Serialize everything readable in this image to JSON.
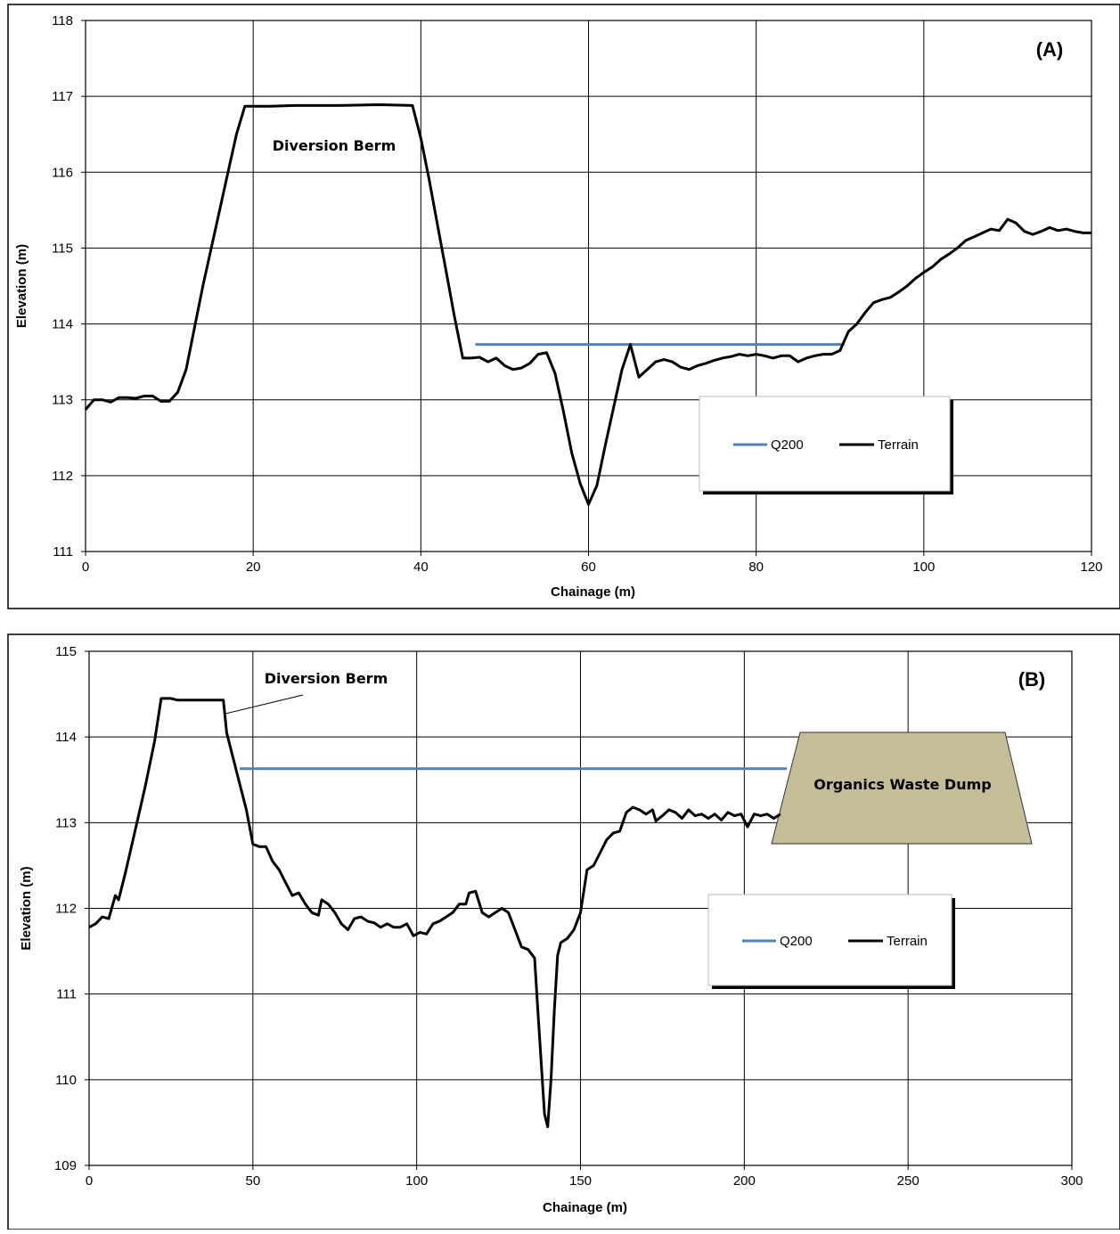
{
  "chart_data": [
    {
      "type": "line",
      "panel_label": "(A)",
      "xlabel": "Chainage (m)",
      "ylabel": "Elevation (m)",
      "xlim": [
        0,
        120
      ],
      "ylim": [
        111,
        118
      ],
      "xticks": [
        0,
        20,
        40,
        60,
        80,
        100,
        120
      ],
      "yticks": [
        111,
        112,
        113,
        114,
        115,
        116,
        117,
        118
      ],
      "grid": true,
      "legend_position": "lower-right",
      "annotations": [
        "Diversion Berm"
      ],
      "series": [
        {
          "name": "Q200",
          "color": "#4f81bd",
          "points": [
            [
              46.5,
              113.73
            ],
            [
              90.5,
              113.73
            ]
          ]
        },
        {
          "name": "Terrain",
          "color": "#000000",
          "points": [
            [
              0,
              112.87
            ],
            [
              1,
              113.0
            ],
            [
              2,
              113.0
            ],
            [
              3,
              112.97
            ],
            [
              4,
              113.03
            ],
            [
              5,
              113.03
            ],
            [
              6,
              113.02
            ],
            [
              7,
              113.05
            ],
            [
              8,
              113.05
            ],
            [
              9,
              112.98
            ],
            [
              10,
              112.98
            ],
            [
              11,
              113.1
            ],
            [
              12,
              113.4
            ],
            [
              13,
              113.95
            ],
            [
              14,
              114.5
            ],
            [
              15,
              115.0
            ],
            [
              16,
              115.5
            ],
            [
              17,
              116.0
            ],
            [
              18,
              116.5
            ],
            [
              19,
              116.87
            ],
            [
              22,
              116.87
            ],
            [
              25,
              116.88
            ],
            [
              30,
              116.88
            ],
            [
              35,
              116.89
            ],
            [
              39,
              116.88
            ],
            [
              40,
              116.45
            ],
            [
              41,
              115.9
            ],
            [
              42,
              115.3
            ],
            [
              43,
              114.7
            ],
            [
              44,
              114.1
            ],
            [
              45,
              113.55
            ],
            [
              46,
              113.55
            ],
            [
              47,
              113.56
            ],
            [
              48,
              113.5
            ],
            [
              49,
              113.55
            ],
            [
              50,
              113.45
            ],
            [
              51,
              113.4
            ],
            [
              52,
              113.42
            ],
            [
              53,
              113.48
            ],
            [
              54,
              113.6
            ],
            [
              55,
              113.62
            ],
            [
              56,
              113.35
            ],
            [
              57,
              112.85
            ],
            [
              58,
              112.3
            ],
            [
              59,
              111.9
            ],
            [
              60,
              111.62
            ],
            [
              61,
              111.87
            ],
            [
              62,
              112.4
            ],
            [
              63,
              112.9
            ],
            [
              64,
              113.4
            ],
            [
              65,
              113.73
            ],
            [
              66,
              113.3
            ],
            [
              67,
              113.4
            ],
            [
              68,
              113.5
            ],
            [
              69,
              113.53
            ],
            [
              70,
              113.5
            ],
            [
              71,
              113.43
            ],
            [
              72,
              113.4
            ],
            [
              73,
              113.45
            ],
            [
              74,
              113.48
            ],
            [
              75,
              113.52
            ],
            [
              76,
              113.55
            ],
            [
              77,
              113.57
            ],
            [
              78,
              113.6
            ],
            [
              79,
              113.58
            ],
            [
              80,
              113.6
            ],
            [
              81,
              113.58
            ],
            [
              82,
              113.55
            ],
            [
              83,
              113.58
            ],
            [
              84,
              113.58
            ],
            [
              85,
              113.5
            ],
            [
              86,
              113.55
            ],
            [
              87,
              113.58
            ],
            [
              88,
              113.6
            ],
            [
              89,
              113.6
            ],
            [
              90,
              113.65
            ],
            [
              91,
              113.9
            ],
            [
              92,
              114.0
            ],
            [
              93,
              114.15
            ],
            [
              94,
              114.28
            ],
            [
              95,
              114.32
            ],
            [
              96,
              114.35
            ],
            [
              97,
              114.42
            ],
            [
              98,
              114.5
            ],
            [
              99,
              114.6
            ],
            [
              100,
              114.68
            ],
            [
              101,
              114.75
            ],
            [
              102,
              114.85
            ],
            [
              103,
              114.92
            ],
            [
              104,
              115.0
            ],
            [
              105,
              115.1
            ],
            [
              106,
              115.15
            ],
            [
              107,
              115.2
            ],
            [
              108,
              115.25
            ],
            [
              109,
              115.23
            ],
            [
              110,
              115.38
            ],
            [
              111,
              115.33
            ],
            [
              112,
              115.22
            ],
            [
              113,
              115.18
            ],
            [
              114,
              115.22
            ],
            [
              115,
              115.27
            ],
            [
              116,
              115.23
            ],
            [
              117,
              115.25
            ],
            [
              118,
              115.22
            ],
            [
              119,
              115.2
            ],
            [
              120,
              115.2
            ]
          ]
        }
      ]
    },
    {
      "type": "line",
      "panel_label": "(B)",
      "xlabel": "Chainage (m)",
      "ylabel": "Elevation (m)",
      "xlim": [
        0,
        300
      ],
      "ylim": [
        109,
        115
      ],
      "xticks": [
        0,
        50,
        100,
        150,
        200,
        250,
        300
      ],
      "yticks": [
        109,
        110,
        111,
        112,
        113,
        114,
        115
      ],
      "grid": true,
      "legend_position": "lower-right",
      "annotations": [
        "Diversion Berm",
        "Organics Waste Dump"
      ],
      "waste_dump_color": "#c4bd97",
      "series": [
        {
          "name": "Q200",
          "color": "#4f81bd",
          "points": [
            [
              46,
              113.63
            ],
            [
              213,
              113.63
            ]
          ]
        },
        {
          "name": "Terrain",
          "color": "#000000",
          "points": [
            [
              0,
              111.78
            ],
            [
              2,
              111.82
            ],
            [
              4,
              111.9
            ],
            [
              6,
              111.88
            ],
            [
              8,
              112.15
            ],
            [
              9,
              112.1
            ],
            [
              11,
              112.4
            ],
            [
              14,
              112.9
            ],
            [
              17,
              113.4
            ],
            [
              20,
              113.95
            ],
            [
              22,
              114.45
            ],
            [
              25,
              114.45
            ],
            [
              27,
              114.43
            ],
            [
              30,
              114.43
            ],
            [
              35,
              114.43
            ],
            [
              41,
              114.43
            ],
            [
              42,
              114.05
            ],
            [
              45,
              113.6
            ],
            [
              48,
              113.15
            ],
            [
              50,
              112.75
            ],
            [
              52,
              112.72
            ],
            [
              54,
              112.72
            ],
            [
              56,
              112.55
            ],
            [
              58,
              112.45
            ],
            [
              60,
              112.3
            ],
            [
              62,
              112.15
            ],
            [
              64,
              112.18
            ],
            [
              66,
              112.05
            ],
            [
              68,
              111.95
            ],
            [
              70,
              111.92
            ],
            [
              71,
              112.1
            ],
            [
              73,
              112.05
            ],
            [
              75,
              111.95
            ],
            [
              77,
              111.82
            ],
            [
              79,
              111.75
            ],
            [
              81,
              111.88
            ],
            [
              83,
              111.9
            ],
            [
              85,
              111.85
            ],
            [
              87,
              111.83
            ],
            [
              89,
              111.78
            ],
            [
              91,
              111.82
            ],
            [
              93,
              111.78
            ],
            [
              95,
              111.78
            ],
            [
              97,
              111.82
            ],
            [
              99,
              111.68
            ],
            [
              101,
              111.72
            ],
            [
              103,
              111.7
            ],
            [
              105,
              111.82
            ],
            [
              107,
              111.85
            ],
            [
              109,
              111.9
            ],
            [
              111,
              111.95
            ],
            [
              113,
              112.05
            ],
            [
              115,
              112.05
            ],
            [
              116,
              112.18
            ],
            [
              118,
              112.2
            ],
            [
              120,
              111.95
            ],
            [
              122,
              111.9
            ],
            [
              124,
              111.95
            ],
            [
              126,
              112.0
            ],
            [
              128,
              111.95
            ],
            [
              130,
              111.75
            ],
            [
              132,
              111.55
            ],
            [
              134,
              111.52
            ],
            [
              136,
              111.42
            ],
            [
              137,
              110.8
            ],
            [
              138,
              110.2
            ],
            [
              139,
              109.6
            ],
            [
              140,
              109.45
            ],
            [
              141,
              110.0
            ],
            [
              142,
              110.8
            ],
            [
              143,
              111.45
            ],
            [
              144,
              111.6
            ],
            [
              146,
              111.65
            ],
            [
              148,
              111.75
            ],
            [
              150,
              111.95
            ],
            [
              152,
              112.45
            ],
            [
              154,
              112.5
            ],
            [
              156,
              112.65
            ],
            [
              158,
              112.8
            ],
            [
              160,
              112.88
            ],
            [
              162,
              112.9
            ],
            [
              164,
              113.12
            ],
            [
              166,
              113.18
            ],
            [
              168,
              113.15
            ],
            [
              170,
              113.1
            ],
            [
              172,
              113.15
            ],
            [
              173,
              113.02
            ],
            [
              175,
              113.08
            ],
            [
              177,
              113.15
            ],
            [
              179,
              113.12
            ],
            [
              181,
              113.05
            ],
            [
              183,
              113.15
            ],
            [
              185,
              113.08
            ],
            [
              187,
              113.1
            ],
            [
              189,
              113.05
            ],
            [
              191,
              113.1
            ],
            [
              193,
              113.03
            ],
            [
              195,
              113.12
            ],
            [
              197,
              113.08
            ],
            [
              199,
              113.1
            ],
            [
              201,
              112.95
            ],
            [
              203,
              113.1
            ],
            [
              205,
              113.08
            ],
            [
              207,
              113.1
            ],
            [
              209,
              113.05
            ],
            [
              211,
              113.1
            ]
          ]
        }
      ]
    }
  ]
}
